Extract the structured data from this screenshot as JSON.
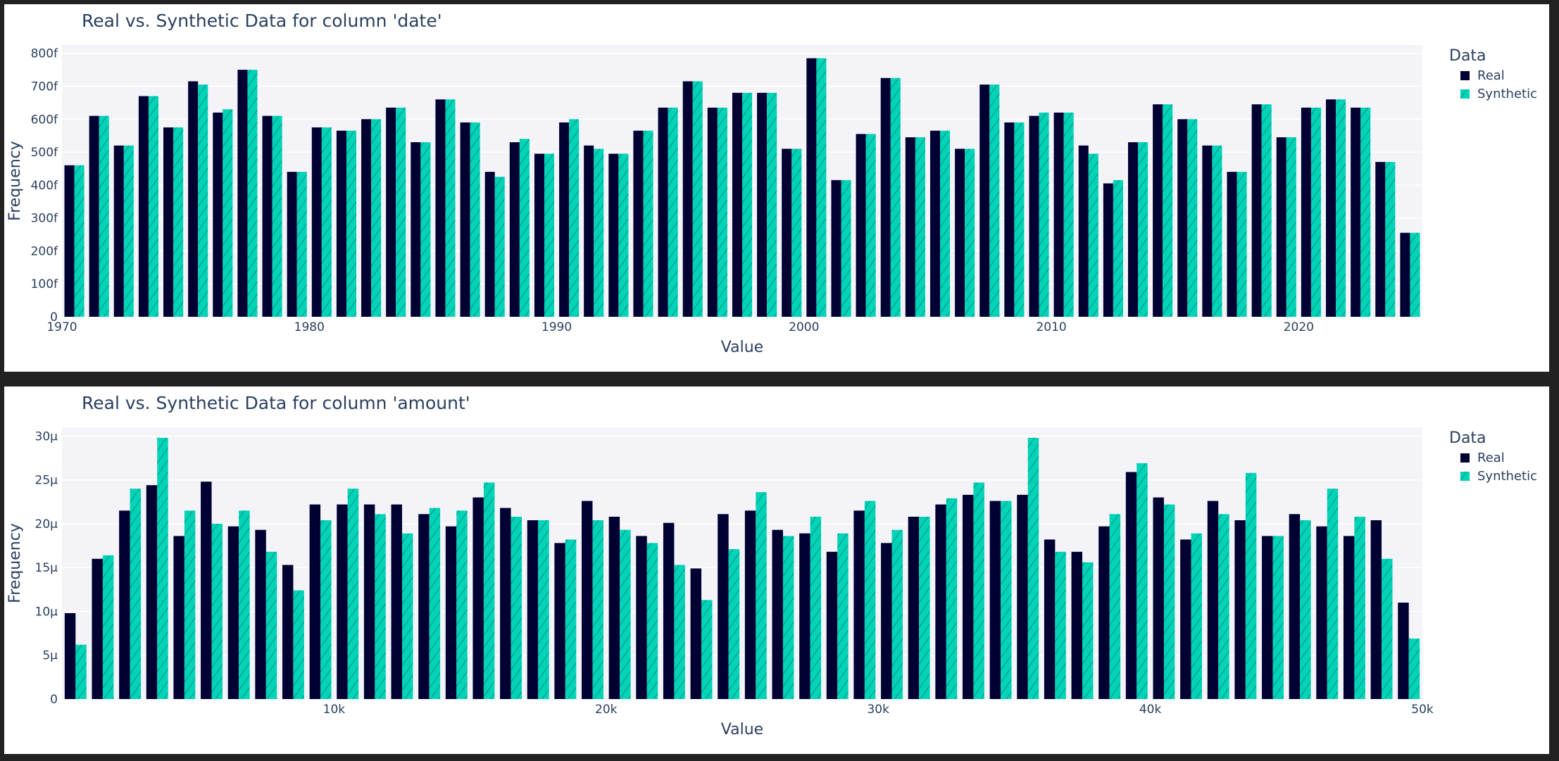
{
  "chart_data": [
    {
      "type": "bar",
      "title": "Real vs. Synthetic Data for column 'date'",
      "xlabel": "Value",
      "ylabel": "Frequency",
      "legend_title": "Data",
      "legend_position": "right",
      "x_ticks": [
        "1970",
        "1980",
        "1990",
        "2000",
        "2010",
        "2020"
      ],
      "y_ticks": [
        "0",
        "100f",
        "200f",
        "300f",
        "400f",
        "500f",
        "600f",
        "700f",
        "800f"
      ],
      "xlim": [
        1970,
        2025
      ],
      "ylim": [
        0,
        825
      ],
      "x": [
        1970,
        1971,
        1972,
        1973,
        1974,
        1975,
        1976,
        1977,
        1978,
        1979,
        1980,
        1981,
        1982,
        1983,
        1984,
        1985,
        1986,
        1987,
        1988,
        1989,
        1990,
        1991,
        1992,
        1993,
        1994,
        1995,
        1996,
        1997,
        1998,
        1999,
        2000,
        2001,
        2002,
        2003,
        2004,
        2005,
        2006,
        2007,
        2008,
        2009,
        2010,
        2011,
        2012,
        2013,
        2014,
        2015,
        2016,
        2017,
        2018,
        2019,
        2020,
        2021,
        2022,
        2023,
        2024
      ],
      "series": [
        {
          "name": "Real",
          "color": "#000033",
          "pattern": "solid",
          "values": [
            460,
            610,
            520,
            670,
            575,
            715,
            620,
            750,
            610,
            440,
            575,
            565,
            600,
            635,
            530,
            660,
            590,
            440,
            530,
            495,
            590,
            520,
            495,
            565,
            635,
            715,
            635,
            680,
            680,
            510,
            785,
            415,
            555,
            725,
            545,
            565,
            510,
            705,
            590,
            610,
            620,
            520,
            405,
            530,
            645,
            600,
            520,
            440,
            645,
            545,
            635,
            660,
            635,
            470,
            255
          ]
        },
        {
          "name": "Synthetic",
          "color": "#00d4b8",
          "pattern": "hatched",
          "values": [
            460,
            610,
            520,
            670,
            575,
            705,
            630,
            750,
            610,
            440,
            575,
            565,
            600,
            635,
            530,
            660,
            590,
            425,
            540,
            495,
            600,
            510,
            495,
            565,
            635,
            715,
            635,
            680,
            680,
            510,
            785,
            415,
            555,
            725,
            545,
            565,
            510,
            705,
            590,
            620,
            620,
            495,
            415,
            530,
            645,
            600,
            520,
            440,
            645,
            545,
            635,
            660,
            635,
            470,
            255
          ]
        }
      ]
    },
    {
      "type": "bar",
      "title": "Real vs. Synthetic Data for column 'amount'",
      "xlabel": "Value",
      "ylabel": "Frequency",
      "legend_title": "Data",
      "legend_position": "right",
      "x_ticks": [
        "10k",
        "20k",
        "30k",
        "40k",
        "50k"
      ],
      "y_ticks": [
        "0",
        "5µ",
        "10µ",
        "15µ",
        "20µ",
        "25µ",
        "30µ"
      ],
      "xlim": [
        0,
        50000
      ],
      "ylim": [
        0,
        31
      ],
      "bin_width": 1000,
      "series": [
        {
          "name": "Real",
          "color": "#000033",
          "pattern": "solid",
          "values": [
            9.8,
            16,
            21.5,
            24.4,
            18.6,
            24.8,
            19.7,
            19.3,
            15.3,
            22.2,
            22.2,
            22.2,
            22.2,
            21.1,
            19.7,
            23,
            21.8,
            20.4,
            17.8,
            22.6,
            20.8,
            18.6,
            20.1,
            14.9,
            21.1,
            21.5,
            19.3,
            18.9,
            16.8,
            21.5,
            17.8,
            20.8,
            22.2,
            23.3,
            22.6,
            23.3,
            18.2,
            16.8,
            19.7,
            25.9,
            23,
            18.2,
            22.6,
            20.4,
            18.6,
            21.1,
            19.7,
            18.6,
            20.4,
            11
          ]
        },
        {
          "name": "Synthetic",
          "color": "#00d4b8",
          "pattern": "hatched",
          "values": [
            6.2,
            16.4,
            24,
            29.8,
            21.5,
            20,
            21.5,
            16.8,
            12.4,
            20.4,
            24,
            21.1,
            18.9,
            21.8,
            21.5,
            24.7,
            20.8,
            20.4,
            18.2,
            20.4,
            19.3,
            17.8,
            15.3,
            11.3,
            17.1,
            23.6,
            18.6,
            20.8,
            18.9,
            22.6,
            19.3,
            20.8,
            22.9,
            24.7,
            22.6,
            29.8,
            16.8,
            15.6,
            21.1,
            26.9,
            22.2,
            18.9,
            21.1,
            25.8,
            18.6,
            20.4,
            24,
            20.8,
            16,
            6.9
          ]
        }
      ]
    }
  ]
}
